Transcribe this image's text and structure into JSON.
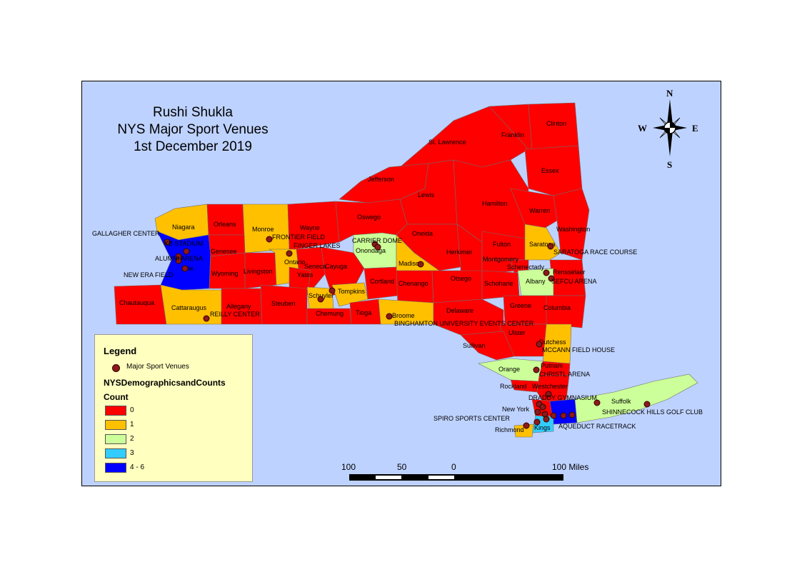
{
  "title": {
    "author": "Rushi Shukla",
    "subject": "NYS Major Sport Venues",
    "date": "1st December 2019"
  },
  "compass": {
    "n": "N",
    "s": "S",
    "e": "E",
    "w": "W"
  },
  "legend": {
    "heading": "Legend",
    "venue_label": "Major Sport Venues",
    "layer_title": "NYSDemographicsandCounts",
    "count_label": "Count",
    "classes": [
      {
        "label": "0",
        "color": "#ff0000"
      },
      {
        "label": "1",
        "color": "#ffc000"
      },
      {
        "label": "2",
        "color": "#ccff99"
      },
      {
        "label": "3",
        "color": "#33ccff"
      },
      {
        "label": "4 - 6",
        "color": "#0000ff"
      }
    ]
  },
  "scale": {
    "t100": "100",
    "t50": "50",
    "t0": "0",
    "tend": "100 Miles"
  },
  "counties": [
    "St. Lawrence",
    "Franklin",
    "Clinton",
    "Essex",
    "Jefferson",
    "Lewis",
    "Hamilton",
    "Warren",
    "Washington",
    "Niagara",
    "Orleans",
    "Monroe",
    "Wayne",
    "Oswego",
    "Oneida",
    "Onondaga",
    "Genesee",
    "Erie",
    "Wyoming",
    "Livingston",
    "Ontario",
    "Seneca",
    "Cayuga",
    "Yates",
    "Madison",
    "Herkimer",
    "Fulton",
    "Montgomery",
    "Saratoga",
    "Schenectady",
    "Rensselaer",
    "Albany",
    "Otsego",
    "Chenango",
    "Cortland",
    "Tompkins",
    "Schuyler",
    "Chemung",
    "Tioga",
    "Broome",
    "Steuben",
    "Allegany",
    "Cattaraugus",
    "Chautauqua",
    "Delaware",
    "Schoharie",
    "Greene",
    "Columbia",
    "Ulster",
    "Dutchess",
    "Sullivan",
    "Orange",
    "Putnam",
    "Rockland",
    "Westchester",
    "New York",
    "Kings",
    "Richmond",
    "Suffolk"
  ],
  "venues": [
    "GALLAGHER CENTER",
    "KB STADIUM",
    "ALUMNI ARENA",
    "NEW ERA FIELD",
    "FRONTIER FIELD",
    "FINGER LAKES",
    "CARRIER DOME",
    "SARATOGA RACE COURSE",
    "SEFCU ARENA",
    "REILLY CENTER",
    "BINGHAMTON UNIVERSITY EVENTS CENTER",
    "MCCANN FIELD HOUSE",
    "CHRISTL ARENA",
    "DRADDY GYMNASIUM",
    "SHINNECOCK HILLS GOLF CLUB",
    "SPIRO SPORTS CENTER",
    "AQUEDUCT RACETRACK"
  ]
}
